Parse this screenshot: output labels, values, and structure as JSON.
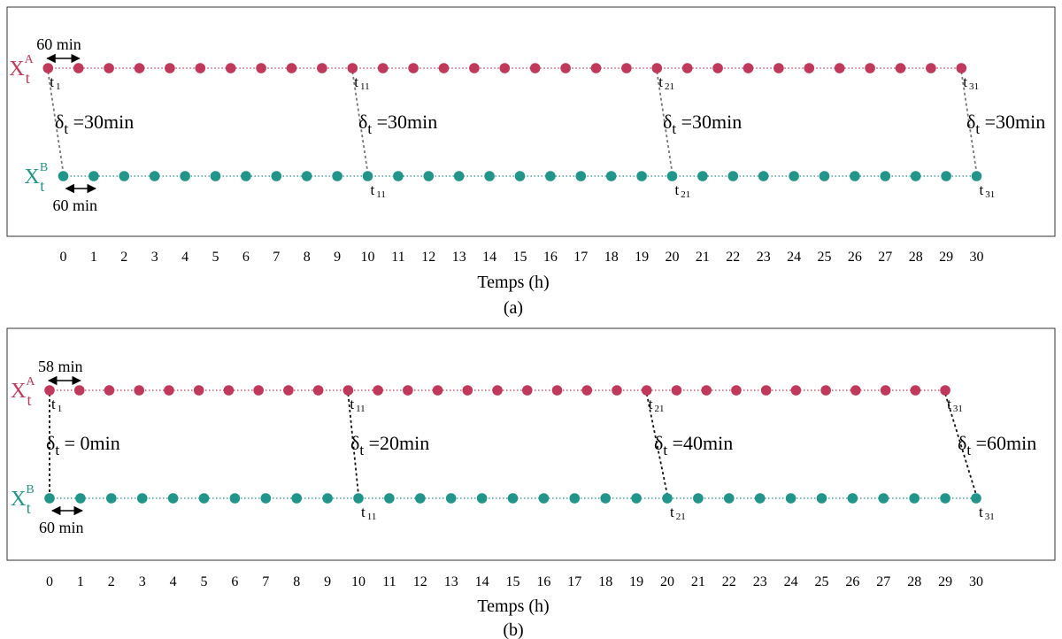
{
  "colors": {
    "series_a": "#c0395a",
    "series_b": "#22958a",
    "text": "#000000",
    "frame": "#333333",
    "lag_a": "#777777",
    "lag_b": "#111111"
  },
  "panels": [
    {
      "id": "a",
      "caption": "(a)",
      "xlabel": "Temps (h)",
      "ticks": [
        "0",
        "1",
        "2",
        "3",
        "4",
        "5",
        "6",
        "7",
        "8",
        "9",
        "10",
        "11",
        "12",
        "13",
        "14",
        "15",
        "16",
        "17",
        "18",
        "19",
        "20",
        "21",
        "22",
        "23",
        "24",
        "25",
        "26",
        "27",
        "28",
        "29",
        "30"
      ],
      "series_a": {
        "label_main": "X",
        "label_sub": "t",
        "label_sup": "A"
      },
      "series_b": {
        "label_main": "X",
        "label_sub": "t",
        "label_sup": "B"
      },
      "interval_a_label": "60 min",
      "interval_b_label": "60 min",
      "interval_a_minutes": 60,
      "interval_b_minutes": 60,
      "a_start_hours": -0.5,
      "b_start_hours": 0,
      "point_count": 31,
      "lags": [
        {
          "index_label": "1",
          "delta_text": "30min",
          "a_label": "t",
          "a_sub": "1",
          "b_label": "",
          "b_sub": ""
        },
        {
          "index_label": "11",
          "delta_text": "30min",
          "a_label": "t",
          "a_sub": "11",
          "b_label": "t",
          "b_sub": "11"
        },
        {
          "index_label": "21",
          "delta_text": "30min",
          "a_label": "t",
          "a_sub": "21",
          "b_label": "t",
          "b_sub": "21"
        },
        {
          "index_label": "31",
          "delta_text": "30min",
          "a_label": "t",
          "a_sub": "31",
          "b_label": "t",
          "b_sub": "31"
        }
      ],
      "delta_symbol": "δ",
      "delta_sub": "t"
    },
    {
      "id": "b",
      "caption": "(b)",
      "xlabel": "Temps (h)",
      "ticks": [
        "0",
        "1",
        "2",
        "3",
        "4",
        "5",
        "6",
        "7",
        "8",
        "9",
        "10",
        "11",
        "12",
        "13",
        "14",
        "15",
        "16",
        "17",
        "18",
        "19",
        "20",
        "21",
        "22",
        "23",
        "24",
        "25",
        "26",
        "27",
        "28",
        "29",
        "30"
      ],
      "series_a": {
        "label_main": "X",
        "label_sub": "t",
        "label_sup": "A"
      },
      "series_b": {
        "label_main": "X",
        "label_sub": "t",
        "label_sup": "B"
      },
      "interval_a_label": "58 min",
      "interval_b_label": "60 min",
      "interval_a_minutes": 58,
      "interval_b_minutes": 60,
      "a_start_hours": 0,
      "b_start_hours": 0,
      "point_count": 31,
      "lags": [
        {
          "index_label": "1",
          "delta_text": " 0min",
          "a_label": "t",
          "a_sub": "1",
          "b_label": "",
          "b_sub": ""
        },
        {
          "index_label": "11",
          "delta_text": "20min",
          "a_label": "t",
          "a_sub": "11",
          "b_label": "t",
          "b_sub": "11"
        },
        {
          "index_label": "21",
          "delta_text": "40min",
          "a_label": "t",
          "a_sub": "21",
          "b_label": "t",
          "b_sub": "21"
        },
        {
          "index_label": "31",
          "delta_text": "60min",
          "a_label": "t",
          "a_sub": "31",
          "b_label": "t",
          "b_sub": "31"
        }
      ],
      "delta_symbol": "δ",
      "delta_sub": "t"
    }
  ]
}
